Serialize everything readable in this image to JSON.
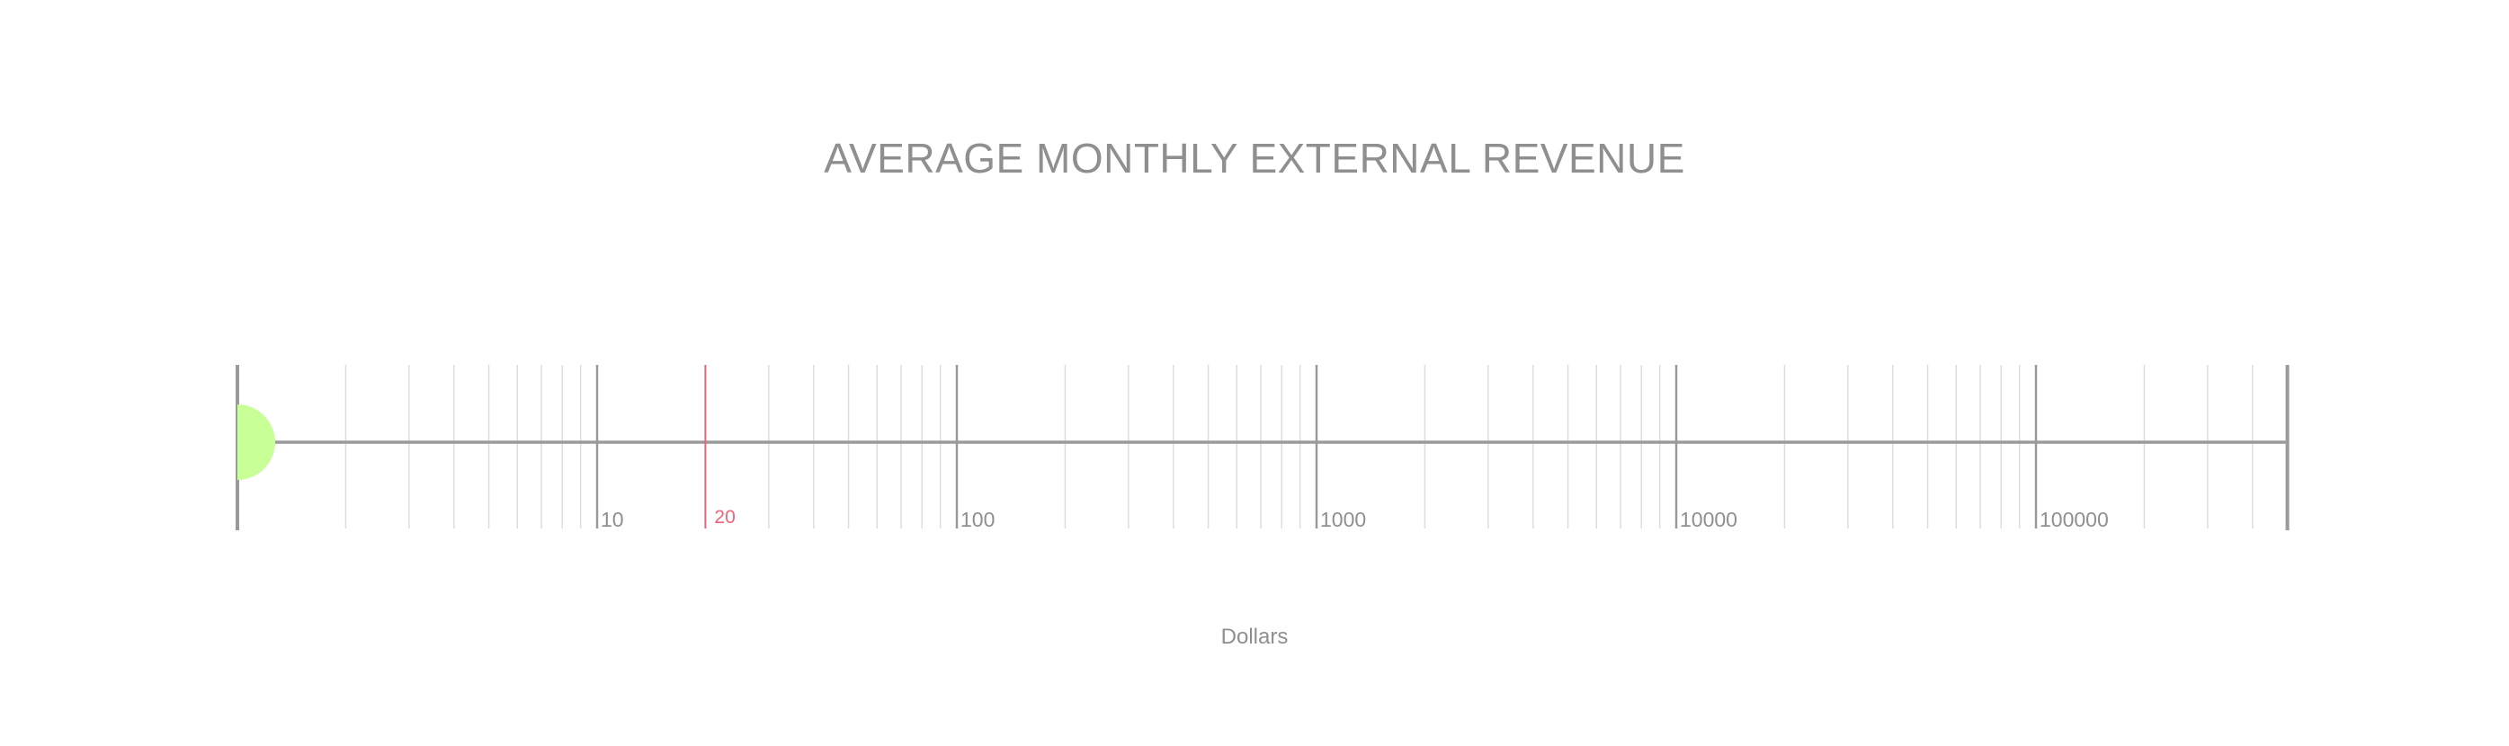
{
  "chart_data": {
    "type": "scatter",
    "title": "AVERAGE MONTHLY EXTERNAL REVENUE",
    "xlabel": "Dollars",
    "ylabel": "",
    "scale": "log",
    "xlim": [
      1,
      500000
    ],
    "major_ticks": [
      10,
      100,
      1000,
      10000,
      100000
    ],
    "tick_labels": [
      "10",
      "100",
      "1000",
      "10000",
      "100000"
    ],
    "grid": true,
    "reference_line": {
      "value": 20,
      "label": "20"
    },
    "points": [
      {
        "x": 1
      }
    ],
    "colors": {
      "axis": "#9a9a9a",
      "grid": "#dddddd",
      "text": "#8f8f8f",
      "reference": "#f0627a",
      "point": "#c8ff96"
    }
  }
}
